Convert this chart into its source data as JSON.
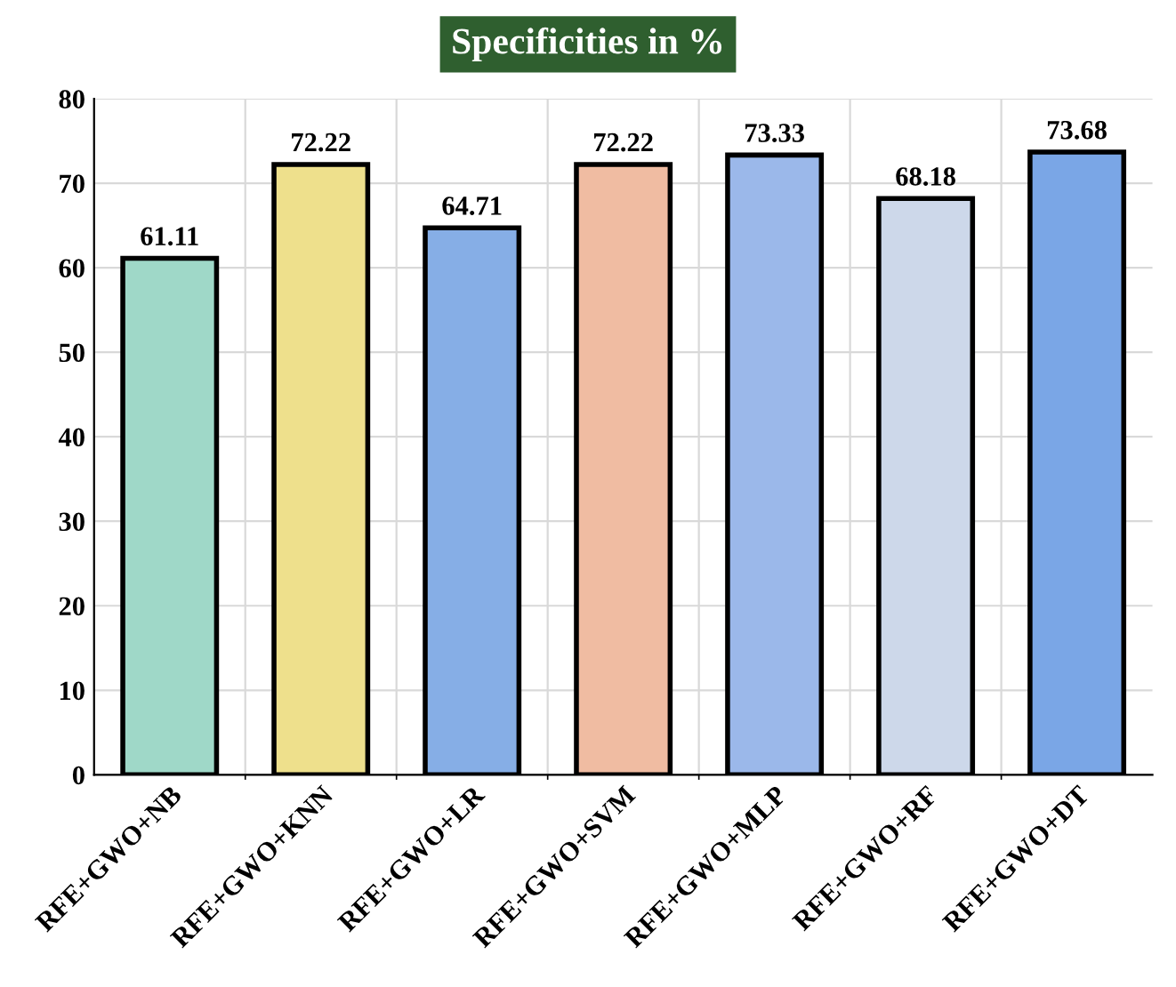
{
  "chart_data": {
    "type": "bar",
    "title": "Specificities in %",
    "categories": [
      "RFE+GWO+NB",
      "RFE+GWO+KNN",
      "RFE+GWO+LR",
      "RFE+GWO+SVM",
      "RFE+GWO+MLP",
      "RFE+GWO+RF",
      "RFE+GWO+DT"
    ],
    "values": [
      61.11,
      72.22,
      64.71,
      72.22,
      73.33,
      68.18,
      73.68
    ],
    "colors": [
      "#9fd8c8",
      "#eee08c",
      "#86aee6",
      "#f0bca2",
      "#9bb8ea",
      "#cdd8ea",
      "#7aa6e6"
    ],
    "ylim": [
      0,
      80
    ],
    "yticks": [
      0,
      10,
      20,
      30,
      40,
      50,
      60,
      70,
      80
    ],
    "grid": true,
    "data_labels": true
  }
}
